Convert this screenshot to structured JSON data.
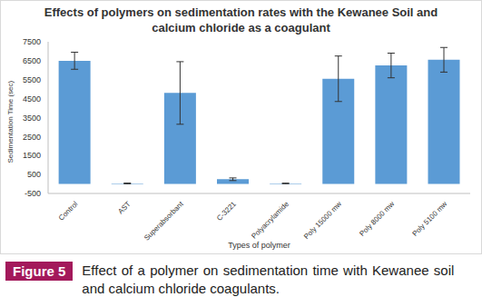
{
  "chart_data": {
    "type": "bar",
    "title": "Effects of polymers on sedimentation rates with the Kewanee Soil and calcium chloride as a coagulant",
    "x_label": "Types of polymer",
    "y_label": "Sedimentation Time (sec)",
    "categories": [
      "Control",
      "AST",
      "Superabsorbant",
      "C-3221",
      "Polyacrylamide",
      "Poly 15000 mw",
      "Poly 8000 mw",
      "Poly 5100 mw"
    ],
    "values": [
      6500,
      30,
      4800,
      250,
      30,
      5550,
      6250,
      6550
    ],
    "errors": [
      450,
      20,
      1650,
      70,
      15,
      1200,
      650,
      650
    ],
    "color": "#5b9bd5",
    "ylim": [
      -500,
      7500
    ],
    "yticks": [
      -500,
      500,
      1500,
      2500,
      3500,
      4500,
      5500,
      6500,
      7500
    ],
    "grid": false,
    "data_labels": false,
    "caption_label": "Figure 5",
    "caption": "Effect of a polymer on sedimentation time with Kewanee soil and calcium chloride coagulants."
  }
}
